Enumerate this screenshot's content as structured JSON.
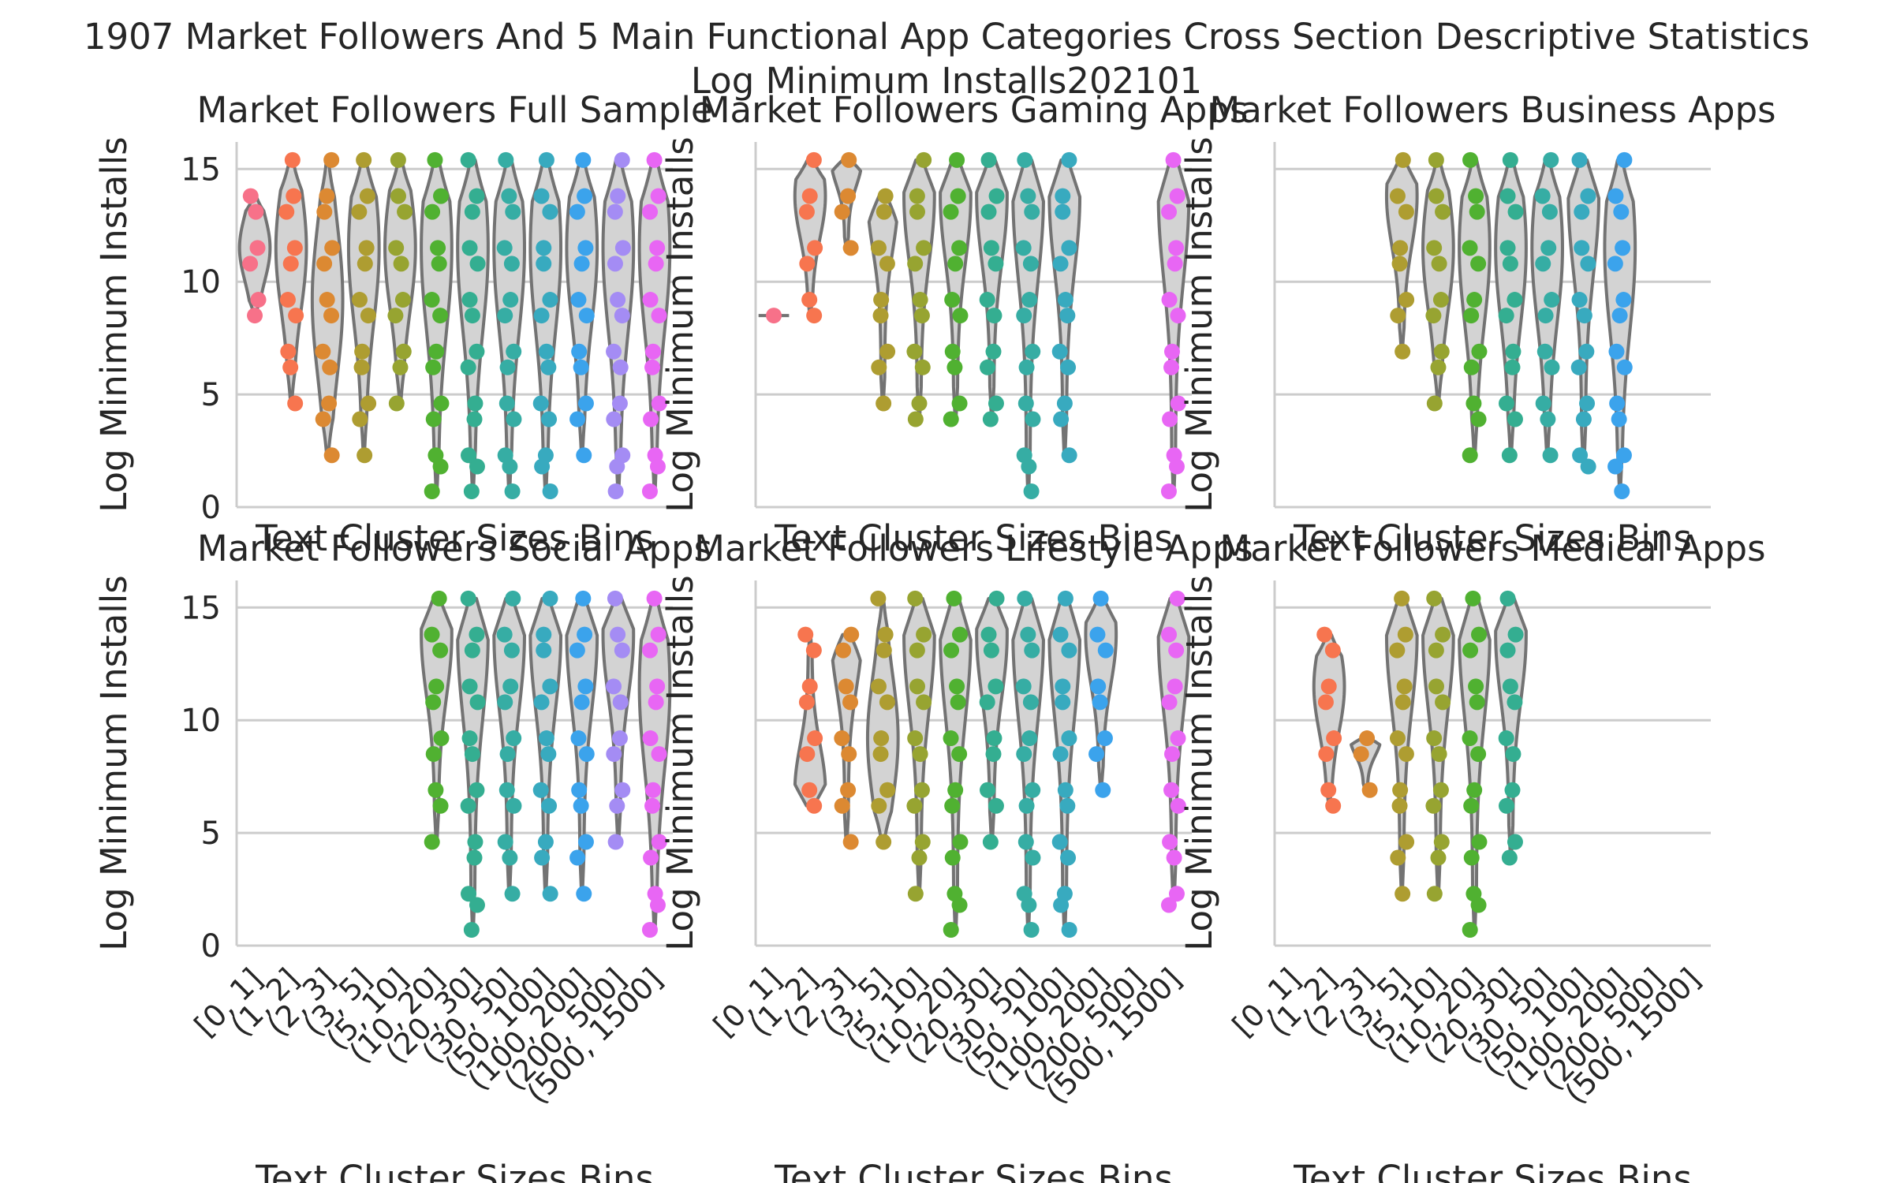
{
  "figure": {
    "title_line1": "1907 Market Followers And 5 Main Functional App Categories Cross Section Descriptive Statistics",
    "title_line2": "Log Minimum Installs202101"
  },
  "style": {
    "grid_color": "#cccccc",
    "violin_fill": "#d3d3d3",
    "violin_edge": "#737373",
    "category_colors": [
      "#f77189",
      "#f7754f",
      "#dc8932",
      "#ae9d31",
      "#97a431",
      "#50b131",
      "#34ae91",
      "#36ada4",
      "#38aabf",
      "#3ba3ec",
      "#a48cf4",
      "#e866f4",
      "#f668c2"
    ]
  },
  "chart_data": [
    {
      "type": "violin-strip",
      "title": "Market Followers Full Sample",
      "xlabel": "Text Cluster Sizes Bins",
      "ylabel": "Log Minimum Installs",
      "categories": [
        "[0, 1]",
        "(1, 2]",
        "(2, 3]",
        "(3, 5]",
        "(5, 10]",
        "(10, 20]",
        "(20, 30]",
        "(30, 50]",
        "(50, 100]",
        "(100, 200]",
        "(200, 500]",
        "(500, 1500]"
      ],
      "ylim": [
        0,
        16.2
      ],
      "yticks": [
        0,
        5,
        10,
        15
      ],
      "grid": "horizontal",
      "groups": [
        {
          "category": "[0, 1]",
          "min": 8.5,
          "max": 13.8,
          "mode": 11.5
        },
        {
          "category": "(1, 2]",
          "min": 4.6,
          "max": 15.4,
          "mode": 11.5
        },
        {
          "category": "(2, 3]",
          "min": 2.3,
          "max": 15.4,
          "mode": 9.2
        },
        {
          "category": "(3, 5]",
          "min": 2.3,
          "max": 15.4,
          "mode": 11.5
        },
        {
          "category": "(5, 10]",
          "min": 4.6,
          "max": 15.4,
          "mode": 11.5
        },
        {
          "category": "(10, 20]",
          "min": 0.7,
          "max": 15.4,
          "mode": 11.5
        },
        {
          "category": "(20, 30]",
          "min": 0.7,
          "max": 15.4,
          "mode": 11.5
        },
        {
          "category": "(30, 50]",
          "min": 0.7,
          "max": 15.4,
          "mode": 11.5
        },
        {
          "category": "(50, 100]",
          "min": 0.7,
          "max": 15.4,
          "mode": 11.5
        },
        {
          "category": "(100, 200]",
          "min": 2.3,
          "max": 15.4,
          "mode": 11.5
        },
        {
          "category": "(200, 500]",
          "min": 0.7,
          "max": 15.4,
          "mode": 11.5
        },
        {
          "category": "(500, 1500]",
          "min": 0.7,
          "max": 15.4,
          "mode": 11.5
        }
      ]
    },
    {
      "type": "violin-strip",
      "title": "Market Followers Gaming Apps",
      "xlabel": "Text Cluster Sizes Bins",
      "ylabel": "Log Minimum Installs",
      "categories": [
        "[0, 1]",
        "(1, 2]",
        "(2, 3]",
        "(3, 5]",
        "(5, 10]",
        "(10, 20]",
        "(20, 30]",
        "(30, 50]",
        "(50, 100]",
        "(100, 200]",
        "(200, 500]",
        "(500, 1500]"
      ],
      "ylim": [
        0,
        16.2
      ],
      "yticks": [
        0,
        5,
        10,
        15
      ],
      "grid": "horizontal",
      "groups": [
        {
          "category": "[0, 1]",
          "min": 8.5,
          "max": 8.5,
          "mode": 8.5
        },
        {
          "category": "(1, 2]",
          "min": 8.5,
          "max": 15.4,
          "mode": 13.8
        },
        {
          "category": "(2, 3]",
          "min": 11.5,
          "max": 15.4,
          "mode": 15.4
        },
        {
          "category": "(3, 5]",
          "min": 4.6,
          "max": 13.8,
          "mode": 13.8
        },
        {
          "category": "(5, 10]",
          "min": 3.9,
          "max": 15.4,
          "mode": 13.8
        },
        {
          "category": "(10, 20]",
          "min": 3.9,
          "max": 15.4,
          "mode": 13.8
        },
        {
          "category": "(20, 30]",
          "min": 3.9,
          "max": 15.4,
          "mode": 13.8
        },
        {
          "category": "(30, 50]",
          "min": 0.7,
          "max": 15.4,
          "mode": 13.8
        },
        {
          "category": "(50, 100]",
          "min": 2.3,
          "max": 15.4,
          "mode": 13.8
        },
        {
          "category": "(500, 1500]",
          "min": 0.7,
          "max": 15.4,
          "mode": 13.8
        }
      ]
    },
    {
      "type": "violin-strip",
      "title": "Market Followers Business Apps",
      "xlabel": "Text Cluster Sizes Bins",
      "ylabel": "Log Minimum Installs",
      "categories": [
        "[0, 1]",
        "(1, 2]",
        "(2, 3]",
        "(3, 5]",
        "(5, 10]",
        "(10, 20]",
        "(20, 30]",
        "(30, 50]",
        "(50, 100]",
        "(100, 200]",
        "(200, 500]",
        "(500, 1500]"
      ],
      "ylim": [
        0,
        16.2
      ],
      "yticks": [
        0,
        5,
        10,
        15
      ],
      "grid": "horizontal",
      "groups": [
        {
          "category": "(3, 5]",
          "min": 6.9,
          "max": 15.4,
          "mode": 13.8
        },
        {
          "category": "(5, 10]",
          "min": 4.6,
          "max": 15.4,
          "mode": 11.5
        },
        {
          "category": "(10, 20]",
          "min": 2.3,
          "max": 15.4,
          "mode": 11.5
        },
        {
          "category": "(20, 30]",
          "min": 2.3,
          "max": 15.4,
          "mode": 11.5
        },
        {
          "category": "(30, 50]",
          "min": 2.3,
          "max": 15.4,
          "mode": 11.5
        },
        {
          "category": "(50, 100]",
          "min": 1.8,
          "max": 15.4,
          "mode": 13.8
        },
        {
          "category": "(100, 200]",
          "min": 0.7,
          "max": 15.4,
          "mode": 11.5
        }
      ]
    },
    {
      "type": "violin-strip",
      "title": "Market Followers Social Apps",
      "xlabel": "Text Cluster Sizes Bins",
      "ylabel": "Log Minimum Installs",
      "categories": [
        "[0, 1]",
        "(1, 2]",
        "(2, 3]",
        "(3, 5]",
        "(5, 10]",
        "(10, 20]",
        "(20, 30]",
        "(30, 50]",
        "(50, 100]",
        "(100, 200]",
        "(200, 500]",
        "(500, 1500]"
      ],
      "ylim": [
        0,
        16.2
      ],
      "yticks": [
        0,
        5,
        10,
        15
      ],
      "grid": "horizontal",
      "groups": [
        {
          "category": "(10, 20]",
          "min": 4.6,
          "max": 15.4,
          "mode": 13.8
        },
        {
          "category": "(20, 30]",
          "min": 0.7,
          "max": 15.4,
          "mode": 13.8
        },
        {
          "category": "(30, 50]",
          "min": 2.3,
          "max": 15.4,
          "mode": 13.8
        },
        {
          "category": "(50, 100]",
          "min": 2.3,
          "max": 15.4,
          "mode": 13.8
        },
        {
          "category": "(100, 200]",
          "min": 2.3,
          "max": 15.4,
          "mode": 13.8
        },
        {
          "category": "(200, 500]",
          "min": 4.6,
          "max": 15.4,
          "mode": 13.8
        },
        {
          "category": "(500, 1500]",
          "min": 0.7,
          "max": 15.4,
          "mode": 11.5
        }
      ]
    },
    {
      "type": "violin-strip",
      "title": "Market Followers Lifestyle Apps",
      "xlabel": "Text Cluster Sizes Bins",
      "ylabel": "Log Minimum Installs",
      "categories": [
        "[0, 1]",
        "(1, 2]",
        "(2, 3]",
        "(3, 5]",
        "(5, 10]",
        "(10, 20]",
        "(20, 30]",
        "(30, 50]",
        "(50, 100]",
        "(100, 200]",
        "(200, 500]",
        "(500, 1500]"
      ],
      "ylim": [
        0,
        16.2
      ],
      "yticks": [
        0,
        5,
        10,
        15
      ],
      "grid": "horizontal",
      "groups": [
        {
          "category": "(1, 2]",
          "min": 6.2,
          "max": 13.8,
          "mode": 6.9
        },
        {
          "category": "(2, 3]",
          "min": 4.6,
          "max": 13.8,
          "mode": 13.8
        },
        {
          "category": "(3, 5]",
          "min": 4.6,
          "max": 15.4,
          "mode": 9.2
        },
        {
          "category": "(5, 10]",
          "min": 2.3,
          "max": 15.4,
          "mode": 13.8
        },
        {
          "category": "(10, 20]",
          "min": 0.7,
          "max": 15.4,
          "mode": 13.8
        },
        {
          "category": "(20, 30]",
          "min": 4.6,
          "max": 15.4,
          "mode": 13.8
        },
        {
          "category": "(30, 50]",
          "min": 0.7,
          "max": 15.4,
          "mode": 13.8
        },
        {
          "category": "(50, 100]",
          "min": 0.7,
          "max": 15.4,
          "mode": 13.8
        },
        {
          "category": "(100, 200]",
          "min": 6.9,
          "max": 15.4,
          "mode": 13.8
        },
        {
          "category": "(500, 1500]",
          "min": 1.8,
          "max": 15.4,
          "mode": 13.8
        }
      ]
    },
    {
      "type": "violin-strip",
      "title": "Market Followers Medical Apps",
      "xlabel": "Text Cluster Sizes Bins",
      "ylabel": "Log Minimum Installs",
      "categories": [
        "[0, 1]",
        "(1, 2]",
        "(2, 3]",
        "(3, 5]",
        "(5, 10]",
        "(10, 20]",
        "(20, 30]",
        "(30, 50]",
        "(50, 100]",
        "(100, 200]",
        "(200, 500]",
        "(500, 1500]"
      ],
      "ylim": [
        0,
        16.2
      ],
      "yticks": [
        0,
        5,
        10,
        15
      ],
      "grid": "horizontal",
      "groups": [
        {
          "category": "(1, 2]",
          "min": 6.2,
          "max": 13.8,
          "mode": 11.5
        },
        {
          "category": "(2, 3]",
          "min": 6.9,
          "max": 9.2,
          "mode": 9.2
        },
        {
          "category": "(3, 5]",
          "min": 2.3,
          "max": 15.4,
          "mode": 13.8
        },
        {
          "category": "(5, 10]",
          "min": 2.3,
          "max": 15.4,
          "mode": 13.8
        },
        {
          "category": "(10, 20]",
          "min": 0.7,
          "max": 15.4,
          "mode": 13.8
        },
        {
          "category": "(20, 30]",
          "min": 3.9,
          "max": 15.4,
          "mode": 13.8
        }
      ]
    }
  ]
}
